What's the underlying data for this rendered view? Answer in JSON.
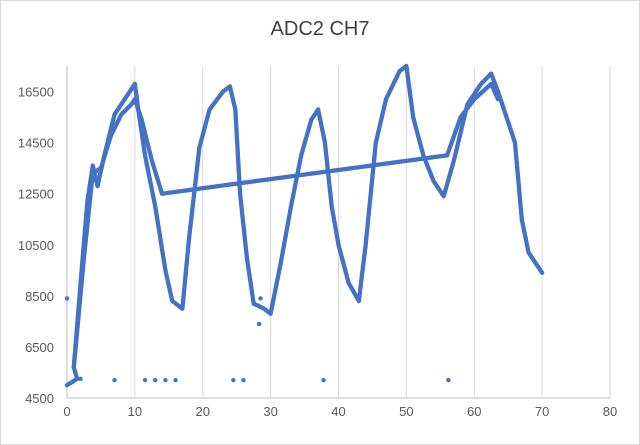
{
  "chart_data": {
    "type": "scatter",
    "title": "ADC2 CH7",
    "xlabel": "",
    "ylabel": "",
    "xlim": [
      0,
      80
    ],
    "ylim": [
      4500,
      17500
    ],
    "xticks": [
      0,
      10,
      20,
      30,
      40,
      50,
      60,
      70,
      80
    ],
    "yticks": [
      4500,
      6500,
      8500,
      10500,
      12500,
      14500,
      16500
    ],
    "grid": "vertical",
    "legend": "none",
    "colors": {
      "series": "#4472c4"
    },
    "series": [
      {
        "points": [
          [
            0,
            5000
          ],
          [
            1.5,
            5250
          ],
          [
            1,
            5700
          ],
          [
            2,
            9000
          ],
          [
            3,
            12200
          ],
          [
            3.8,
            13600
          ],
          [
            4.5,
            12800
          ],
          [
            5.5,
            14000
          ],
          [
            7,
            15600
          ],
          [
            9,
            16400
          ],
          [
            10,
            16800
          ],
          [
            10.5,
            15800
          ],
          [
            11.5,
            14000
          ],
          [
            13,
            12000
          ],
          [
            14.5,
            9500
          ],
          [
            15.5,
            8300
          ],
          [
            17,
            8000
          ],
          [
            18,
            10800
          ],
          [
            19.5,
            14300
          ],
          [
            21,
            15800
          ],
          [
            23,
            16500
          ],
          [
            24,
            16700
          ],
          [
            24.8,
            15800
          ],
          [
            25.5,
            12500
          ],
          [
            26.5,
            10000
          ],
          [
            27.5,
            8200
          ],
          [
            29,
            8000
          ],
          [
            30,
            7800
          ],
          [
            31.5,
            9800
          ],
          [
            33,
            12000
          ],
          [
            34.5,
            14000
          ],
          [
            36,
            15400
          ],
          [
            37,
            15800
          ],
          [
            38,
            14500
          ],
          [
            39,
            12000
          ],
          [
            40,
            10500
          ],
          [
            41.5,
            9000
          ],
          [
            43,
            8300
          ],
          [
            44,
            10500
          ],
          [
            45.5,
            14500
          ],
          [
            47,
            16200
          ],
          [
            49,
            17300
          ],
          [
            50,
            17500
          ],
          [
            51,
            15500
          ],
          [
            52.5,
            14000
          ],
          [
            54,
            13000
          ],
          [
            55.5,
            12400
          ],
          [
            57,
            13800
          ],
          [
            59,
            16000
          ],
          [
            61,
            16800
          ],
          [
            62.5,
            17200
          ],
          [
            63.5,
            16500
          ],
          [
            65,
            15300
          ],
          [
            66,
            14500
          ],
          [
            67,
            11500
          ],
          [
            68,
            10200
          ],
          [
            69,
            9800
          ],
          [
            70,
            9400
          ]
        ],
        "secondary_trace": [
          [
            1,
            5700
          ],
          [
            2.5,
            10000
          ],
          [
            3.8,
            13300
          ],
          [
            5,
            13500
          ],
          [
            6.5,
            14800
          ],
          [
            8,
            15600
          ],
          [
            9.5,
            16000
          ],
          [
            10,
            16200
          ],
          [
            11,
            15400
          ],
          [
            12.5,
            13800
          ],
          [
            14,
            12500
          ],
          [
            56,
            14000
          ],
          [
            58,
            15500
          ],
          [
            60,
            16200
          ],
          [
            62.5,
            16800
          ],
          [
            63.5,
            16200
          ]
        ],
        "outliers": [
          [
            0,
            8400
          ],
          [
            2,
            5250
          ],
          [
            7,
            5200
          ],
          [
            11.5,
            5200
          ],
          [
            13,
            5200
          ],
          [
            14.5,
            5200
          ],
          [
            16,
            5200
          ],
          [
            24.5,
            5200
          ],
          [
            26,
            5200
          ],
          [
            37.8,
            5200
          ],
          [
            56.2,
            5200
          ],
          [
            28.3,
            7400
          ],
          [
            28.5,
            8400
          ]
        ]
      }
    ]
  }
}
